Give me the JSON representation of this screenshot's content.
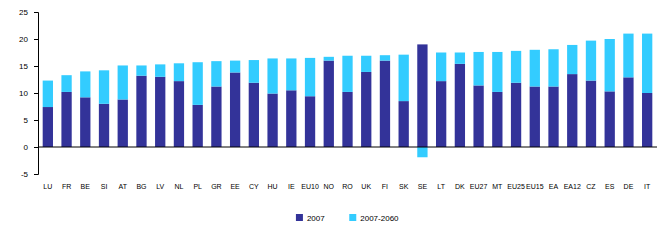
{
  "chart_data": {
    "type": "bar",
    "stacked": true,
    "categories": [
      "LU",
      "FR",
      "BE",
      "SI",
      "AT",
      "BG",
      "LV",
      "NL",
      "PL",
      "GR",
      "EE",
      "CY",
      "HU",
      "IE",
      "EU10",
      "NO",
      "RO",
      "UK",
      "FI",
      "SK",
      "SE",
      "LT",
      "DK",
      "EU27",
      "MT",
      "EU25",
      "EU15",
      "EA",
      "EA12",
      "CZ",
      "ES",
      "DE",
      "IT"
    ],
    "series": [
      {
        "name": "2007",
        "color": "#333399",
        "values": [
          7.4,
          10.2,
          9.2,
          8.0,
          8.8,
          13.2,
          13.0,
          12.2,
          7.8,
          11.2,
          13.8,
          11.9,
          9.9,
          10.5,
          9.4,
          16.0,
          10.2,
          13.9,
          16.0,
          8.5,
          19.0,
          12.2,
          15.4,
          11.4,
          10.2,
          11.9,
          11.2,
          11.2,
          13.5,
          12.3,
          10.3,
          12.9,
          10.0
        ]
      },
      {
        "name": "2007-2060",
        "color": "#33CCFF",
        "values": [
          4.9,
          3.1,
          4.8,
          6.2,
          6.3,
          1.9,
          2.3,
          3.3,
          7.9,
          4.7,
          2.2,
          4.2,
          6.5,
          5.9,
          7.1,
          0.7,
          6.7,
          3.0,
          1.0,
          8.6,
          -1.9,
          5.3,
          2.1,
          6.2,
          7.4,
          5.9,
          6.8,
          6.9,
          5.4,
          7.4,
          9.7,
          8.1,
          11.0
        ]
      }
    ],
    "ylim": [
      -5,
      25
    ],
    "yticks": [
      -5,
      0,
      5,
      10,
      15,
      20,
      25
    ],
    "grid": false,
    "legend": "bottom"
  }
}
